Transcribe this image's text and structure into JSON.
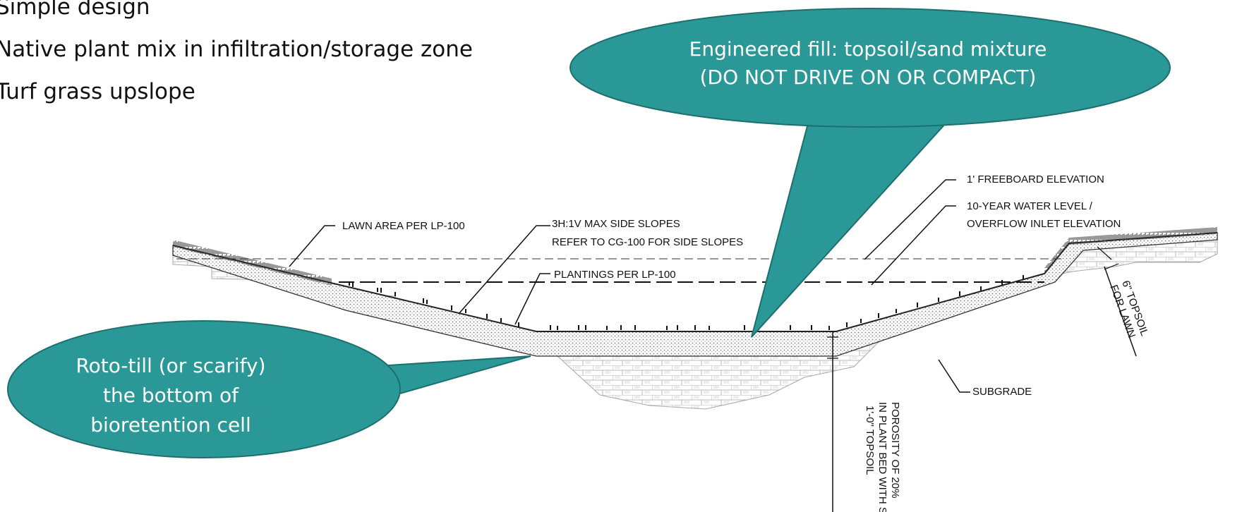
{
  "bullets": {
    "items": [
      "Simple design",
      "Native plant mix in infiltration/storage zone",
      "Turf grass upslope"
    ]
  },
  "callouts": {
    "top": {
      "line1": "Engineered fill: topsoil/sand mixture",
      "line2": "(DO NOT DRIVE ON OR COMPACT)"
    },
    "left": {
      "line1": "Roto-till (or scarify)",
      "line2": "the bottom of",
      "line3": "bioretention cell"
    }
  },
  "labels": {
    "lawn_area": "LAWN AREA PER LP-100",
    "side_slopes_1": "3H:1V MAX SIDE SLOPES",
    "side_slopes_2": "REFER TO CG-100 FOR SIDE SLOPES",
    "plantings": "PLANTINGS PER LP-100",
    "freeboard": "1' FREEBOARD ELEVATION",
    "water_level_1": "10-YEAR WATER LEVEL /",
    "water_level_2": "OVERFLOW INLET ELEVATION",
    "subgrade": "SUBGRADE",
    "topsoil_lawn_1": "6\" TOPSOIL",
    "topsoil_lawn_2": "FOR LAWN",
    "topsoil_bed_1": "1'-0\" TOPSOIL",
    "topsoil_bed_2": "IN PLANT BED WITH SOIL",
    "topsoil_bed_3": "POROSITY OF 20%"
  },
  "colors": {
    "callout_fill": "#2a9897",
    "callout_stroke": "#1d6f6e"
  }
}
